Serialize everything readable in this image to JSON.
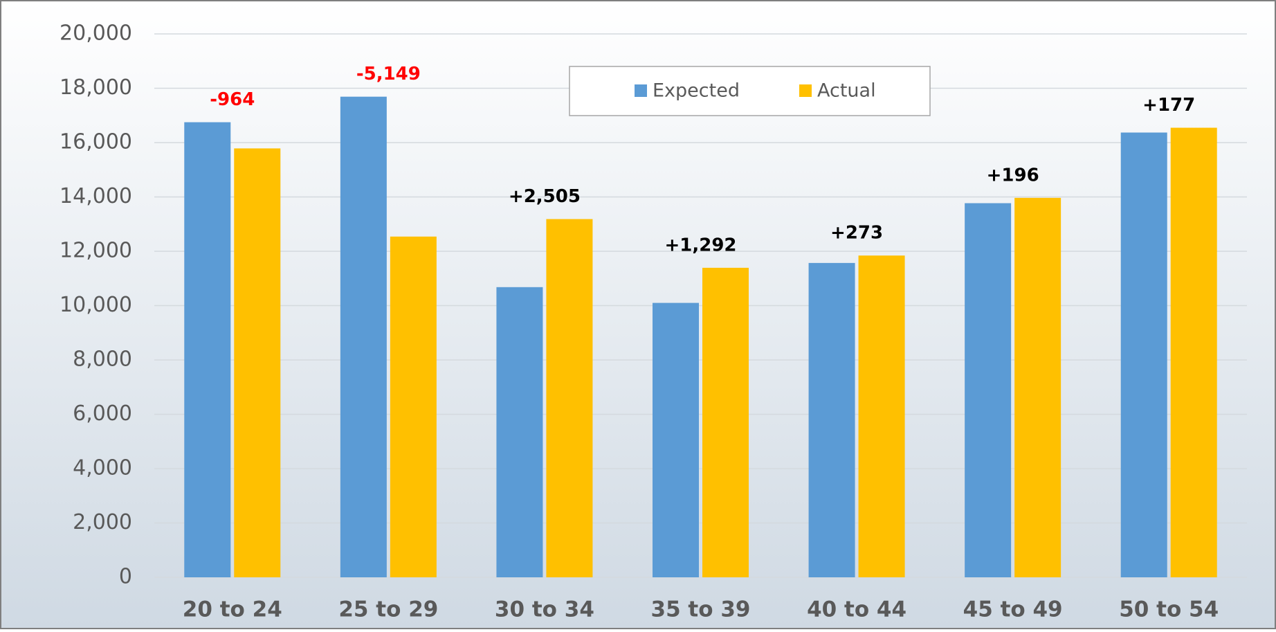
{
  "chart_data": {
    "type": "bar",
    "categories": [
      "20 to 24",
      "25 to 29",
      "30 to 34",
      "35 to 39",
      "40 to 44",
      "45 to 49",
      "50 to 54"
    ],
    "series": [
      {
        "name": "Expected",
        "color": "#5b9bd5",
        "values": [
          16750,
          17690,
          10680,
          10100,
          11570,
          13770,
          16370
        ]
      },
      {
        "name": "Actual",
        "color": "#ffc000",
        "values": [
          15786,
          12541,
          13185,
          11392,
          11843,
          13966,
          16547
        ]
      }
    ],
    "differences": {
      "values": [
        -964,
        -5149,
        2505,
        1292,
        273,
        196,
        177
      ],
      "value_labels": [
        "-964",
        "-5,149",
        "+2,505",
        "+1,292",
        "+273",
        "+196",
        "+177"
      ],
      "negative_color": "#ff0000",
      "positive_color": "#000000"
    },
    "ylim": [
      0,
      20000
    ],
    "yticks": [
      0,
      {
        "value": 2000,
        "label": "2,000"
      },
      {
        "value": 4000,
        "label": "4,000"
      },
      {
        "value": 6000,
        "label": "6,000"
      },
      {
        "value": 8000,
        "label": "8,000"
      },
      {
        "value": 10000,
        "label": "10,000"
      },
      {
        "value": 12000,
        "label": "12,000"
      },
      {
        "value": 14000,
        "label": "14,000"
      },
      {
        "value": 16000,
        "label": "16,000"
      },
      {
        "value": 18000,
        "label": "18,000"
      },
      {
        "value": 20000,
        "label": "20,000"
      }
    ],
    "grid": true,
    "legend": "top"
  }
}
